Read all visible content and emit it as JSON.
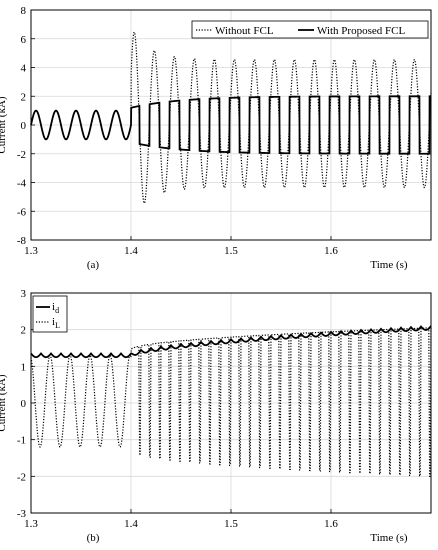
{
  "chart_data": [
    {
      "type": "line",
      "panel_label": "(a)",
      "xlabel": "Time (s)",
      "ylabel": "Current (kA)",
      "xlim": [
        1.3,
        1.7
      ],
      "ylim": [
        -8,
        8
      ],
      "xticks": [
        1.3,
        1.4,
        1.5,
        1.6
      ],
      "yticks": [
        -8,
        -6,
        -4,
        -2,
        0,
        2,
        4,
        6,
        8
      ],
      "grid": true,
      "legend_position": "top-right",
      "fault_time": 1.4,
      "frequency_hz": 50,
      "series": [
        {
          "name": "Without FCL",
          "style": "dotted",
          "prefault_amplitude": 1.0,
          "first_peak": 6.8,
          "steady_upper": 4.5,
          "steady_lower": -4.4,
          "offset": 0.1
        },
        {
          "name": "With Proposed FCL",
          "style": "solid",
          "prefault_amplitude": 1.0,
          "initial_level": 1.2,
          "steady_level": 2.0
        }
      ]
    },
    {
      "type": "line",
      "panel_label": "(b)",
      "xlabel": "Time (s)",
      "ylabel": "Current (kA)",
      "xlim": [
        1.3,
        1.7
      ],
      "ylim": [
        -3,
        3
      ],
      "xticks": [
        1.3,
        1.4,
        1.5,
        1.6
      ],
      "yticks": [
        -3,
        -2,
        -1,
        0,
        1,
        2,
        3
      ],
      "grid": true,
      "legend_position": "top-left",
      "series": [
        {
          "name": "i",
          "subscript": "d",
          "style": "solid",
          "level_start": 1.3,
          "level_end": 2.05,
          "ripple": 0.1
        },
        {
          "name": "i",
          "subscript": "L",
          "style": "dotted",
          "prefault_peak": 1.3,
          "prefault_trough": -1.2,
          "postfault_peak_start": 1.45,
          "postfault_peak_end": 2.05,
          "postfault_trough_start": -1.3,
          "postfault_trough_end": -2.0,
          "frequency_hz": 100
        }
      ]
    }
  ]
}
